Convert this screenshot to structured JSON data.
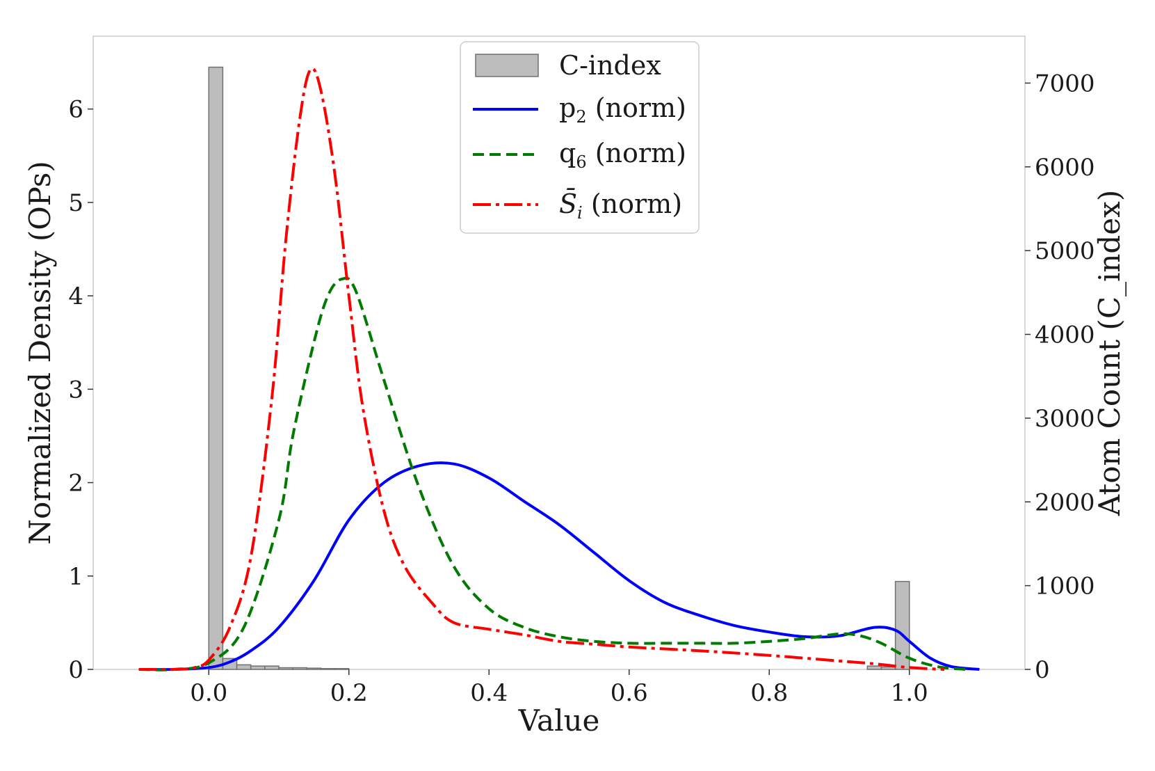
{
  "chart_data": {
    "type": "line",
    "title": "",
    "xlabel": "Value",
    "ylabel": "Normalized Density (OPs)",
    "ylabel_right": "Atom Count (C_index)",
    "xlim": [
      -0.165,
      1.165
    ],
    "ylim": [
      0,
      6.78
    ],
    "ylim_right": [
      0,
      7560
    ],
    "xticks": [
      "0.0",
      "0.2",
      "0.4",
      "0.6",
      "0.8",
      "1.0"
    ],
    "xtick_values": [
      0.0,
      0.2,
      0.4,
      0.6,
      0.8,
      1.0
    ],
    "yticks": [
      "0",
      "1",
      "2",
      "3",
      "4",
      "5",
      "6"
    ],
    "ytick_values": [
      0,
      1,
      2,
      3,
      4,
      5,
      6
    ],
    "yticks_right": [
      "0",
      "1000",
      "2000",
      "3000",
      "4000",
      "5000",
      "6000",
      "7000"
    ],
    "ytick_values_right": [
      0,
      1000,
      2000,
      3000,
      4000,
      5000,
      6000,
      7000
    ],
    "grid": false,
    "legend_position": "top-center",
    "histogram": {
      "name": "C-index",
      "color": "#bdbdbd",
      "edge_color": "#707070",
      "axis": "right",
      "bin_edges": [
        0.0,
        0.02,
        0.04,
        0.06,
        0.08,
        0.1,
        0.12,
        0.14,
        0.16,
        0.18,
        0.2,
        0.94,
        0.96,
        0.98,
        1.0
      ],
      "counts": [
        7190,
        130,
        55,
        40,
        40,
        20,
        20,
        15,
        10,
        10,
        0,
        40,
        30,
        1050
      ]
    },
    "series": [
      {
        "name": "p2 (norm)",
        "label_main": "p",
        "label_sub": "2",
        "label_suffix": " (norm)",
        "color": "#0000ff",
        "style": "solid",
        "x": [
          -0.1,
          -0.05,
          0.0,
          0.03,
          0.06,
          0.1,
          0.15,
          0.2,
          0.25,
          0.3,
          0.35,
          0.4,
          0.45,
          0.5,
          0.55,
          0.6,
          0.65,
          0.7,
          0.75,
          0.8,
          0.85,
          0.9,
          0.95,
          0.98,
          1.0,
          1.03,
          1.06,
          1.1
        ],
        "values": [
          0.0,
          0.0,
          0.02,
          0.08,
          0.2,
          0.45,
          0.95,
          1.6,
          2.0,
          2.18,
          2.2,
          2.05,
          1.8,
          1.55,
          1.25,
          0.95,
          0.72,
          0.58,
          0.47,
          0.4,
          0.35,
          0.36,
          0.45,
          0.42,
          0.3,
          0.12,
          0.03,
          0.0
        ]
      },
      {
        "name": "q6 (norm)",
        "label_main": "q",
        "label_sub": "6",
        "label_suffix": " (norm)",
        "color": "#007a00",
        "style": "dashed",
        "x": [
          -0.1,
          -0.05,
          0.0,
          0.05,
          0.1,
          0.12,
          0.15,
          0.17,
          0.19,
          0.21,
          0.25,
          0.3,
          0.35,
          0.4,
          0.45,
          0.5,
          0.55,
          0.6,
          0.65,
          0.7,
          0.75,
          0.8,
          0.85,
          0.9,
          0.93,
          0.96,
          1.0,
          1.04,
          1.08
        ],
        "values": [
          0.0,
          0.0,
          0.07,
          0.45,
          1.6,
          2.5,
          3.5,
          4.0,
          4.18,
          4.05,
          3.1,
          1.95,
          1.1,
          0.65,
          0.45,
          0.35,
          0.3,
          0.28,
          0.28,
          0.28,
          0.28,
          0.3,
          0.33,
          0.38,
          0.36,
          0.28,
          0.12,
          0.03,
          0.0
        ]
      },
      {
        "name": "S̄i (norm)",
        "label_main": "S̄",
        "label_sub": "i",
        "label_suffix": " (norm)",
        "color": "#ff0000",
        "style": "dashdot",
        "x": [
          -0.1,
          -0.05,
          -0.02,
          0.0,
          0.03,
          0.06,
          0.09,
          0.11,
          0.13,
          0.145,
          0.16,
          0.18,
          0.2,
          0.22,
          0.25,
          0.28,
          0.32,
          0.35,
          0.4,
          0.45,
          0.5,
          0.55,
          0.6,
          0.7,
          0.8,
          0.9,
          0.95,
          1.0,
          1.05
        ],
        "values": [
          0.0,
          0.0,
          0.02,
          0.1,
          0.45,
          1.2,
          2.9,
          4.6,
          5.9,
          6.42,
          6.2,
          5.3,
          4.0,
          2.8,
          1.7,
          1.1,
          0.7,
          0.5,
          0.43,
          0.37,
          0.3,
          0.27,
          0.24,
          0.2,
          0.15,
          0.09,
          0.06,
          0.02,
          0.0
        ]
      }
    ]
  }
}
